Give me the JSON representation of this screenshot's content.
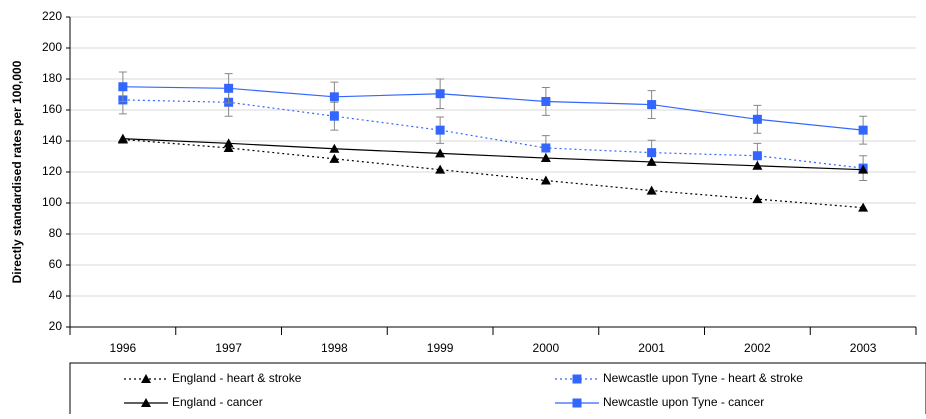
{
  "chart_data": {
    "type": "line",
    "y_label": "Directly standardised rates per 100,000",
    "categories": [
      "1996",
      "1997",
      "1998",
      "1999",
      "2000",
      "2001",
      "2002",
      "2003"
    ],
    "ylim": [
      20,
      220
    ],
    "yticks": [
      20,
      40,
      60,
      80,
      100,
      120,
      140,
      160,
      180,
      200,
      220
    ],
    "grid": true,
    "series": [
      {
        "name": "England - heart & stroke",
        "color": "#000000",
        "marker": "triangle",
        "dashed": true,
        "values": [
          141,
          135.5,
          128.5,
          121.5,
          114.5,
          108,
          102.5,
          97
        ]
      },
      {
        "name": "Newcastle upon Tyne - heart & stroke",
        "color": "#3366ff",
        "marker": "square",
        "dashed": true,
        "values": [
          166.5,
          165,
          156,
          147,
          135.5,
          132.5,
          130.5,
          122.5
        ],
        "errors": [
          9,
          9,
          9,
          8.5,
          8,
          8,
          8,
          8
        ]
      },
      {
        "name": "England - cancer",
        "color": "#000000",
        "marker": "triangle",
        "dashed": false,
        "values": [
          141.5,
          138.5,
          135,
          132,
          129,
          126.5,
          124,
          121.5
        ]
      },
      {
        "name": "Newcastle upon Tyne - cancer",
        "color": "#3366ff",
        "marker": "square",
        "dashed": false,
        "values": [
          175,
          174,
          168.5,
          170.5,
          165.5,
          163.5,
          154,
          147
        ],
        "errors": [
          9.5,
          9.5,
          9.5,
          9.5,
          9,
          9,
          9,
          9
        ]
      }
    ]
  }
}
